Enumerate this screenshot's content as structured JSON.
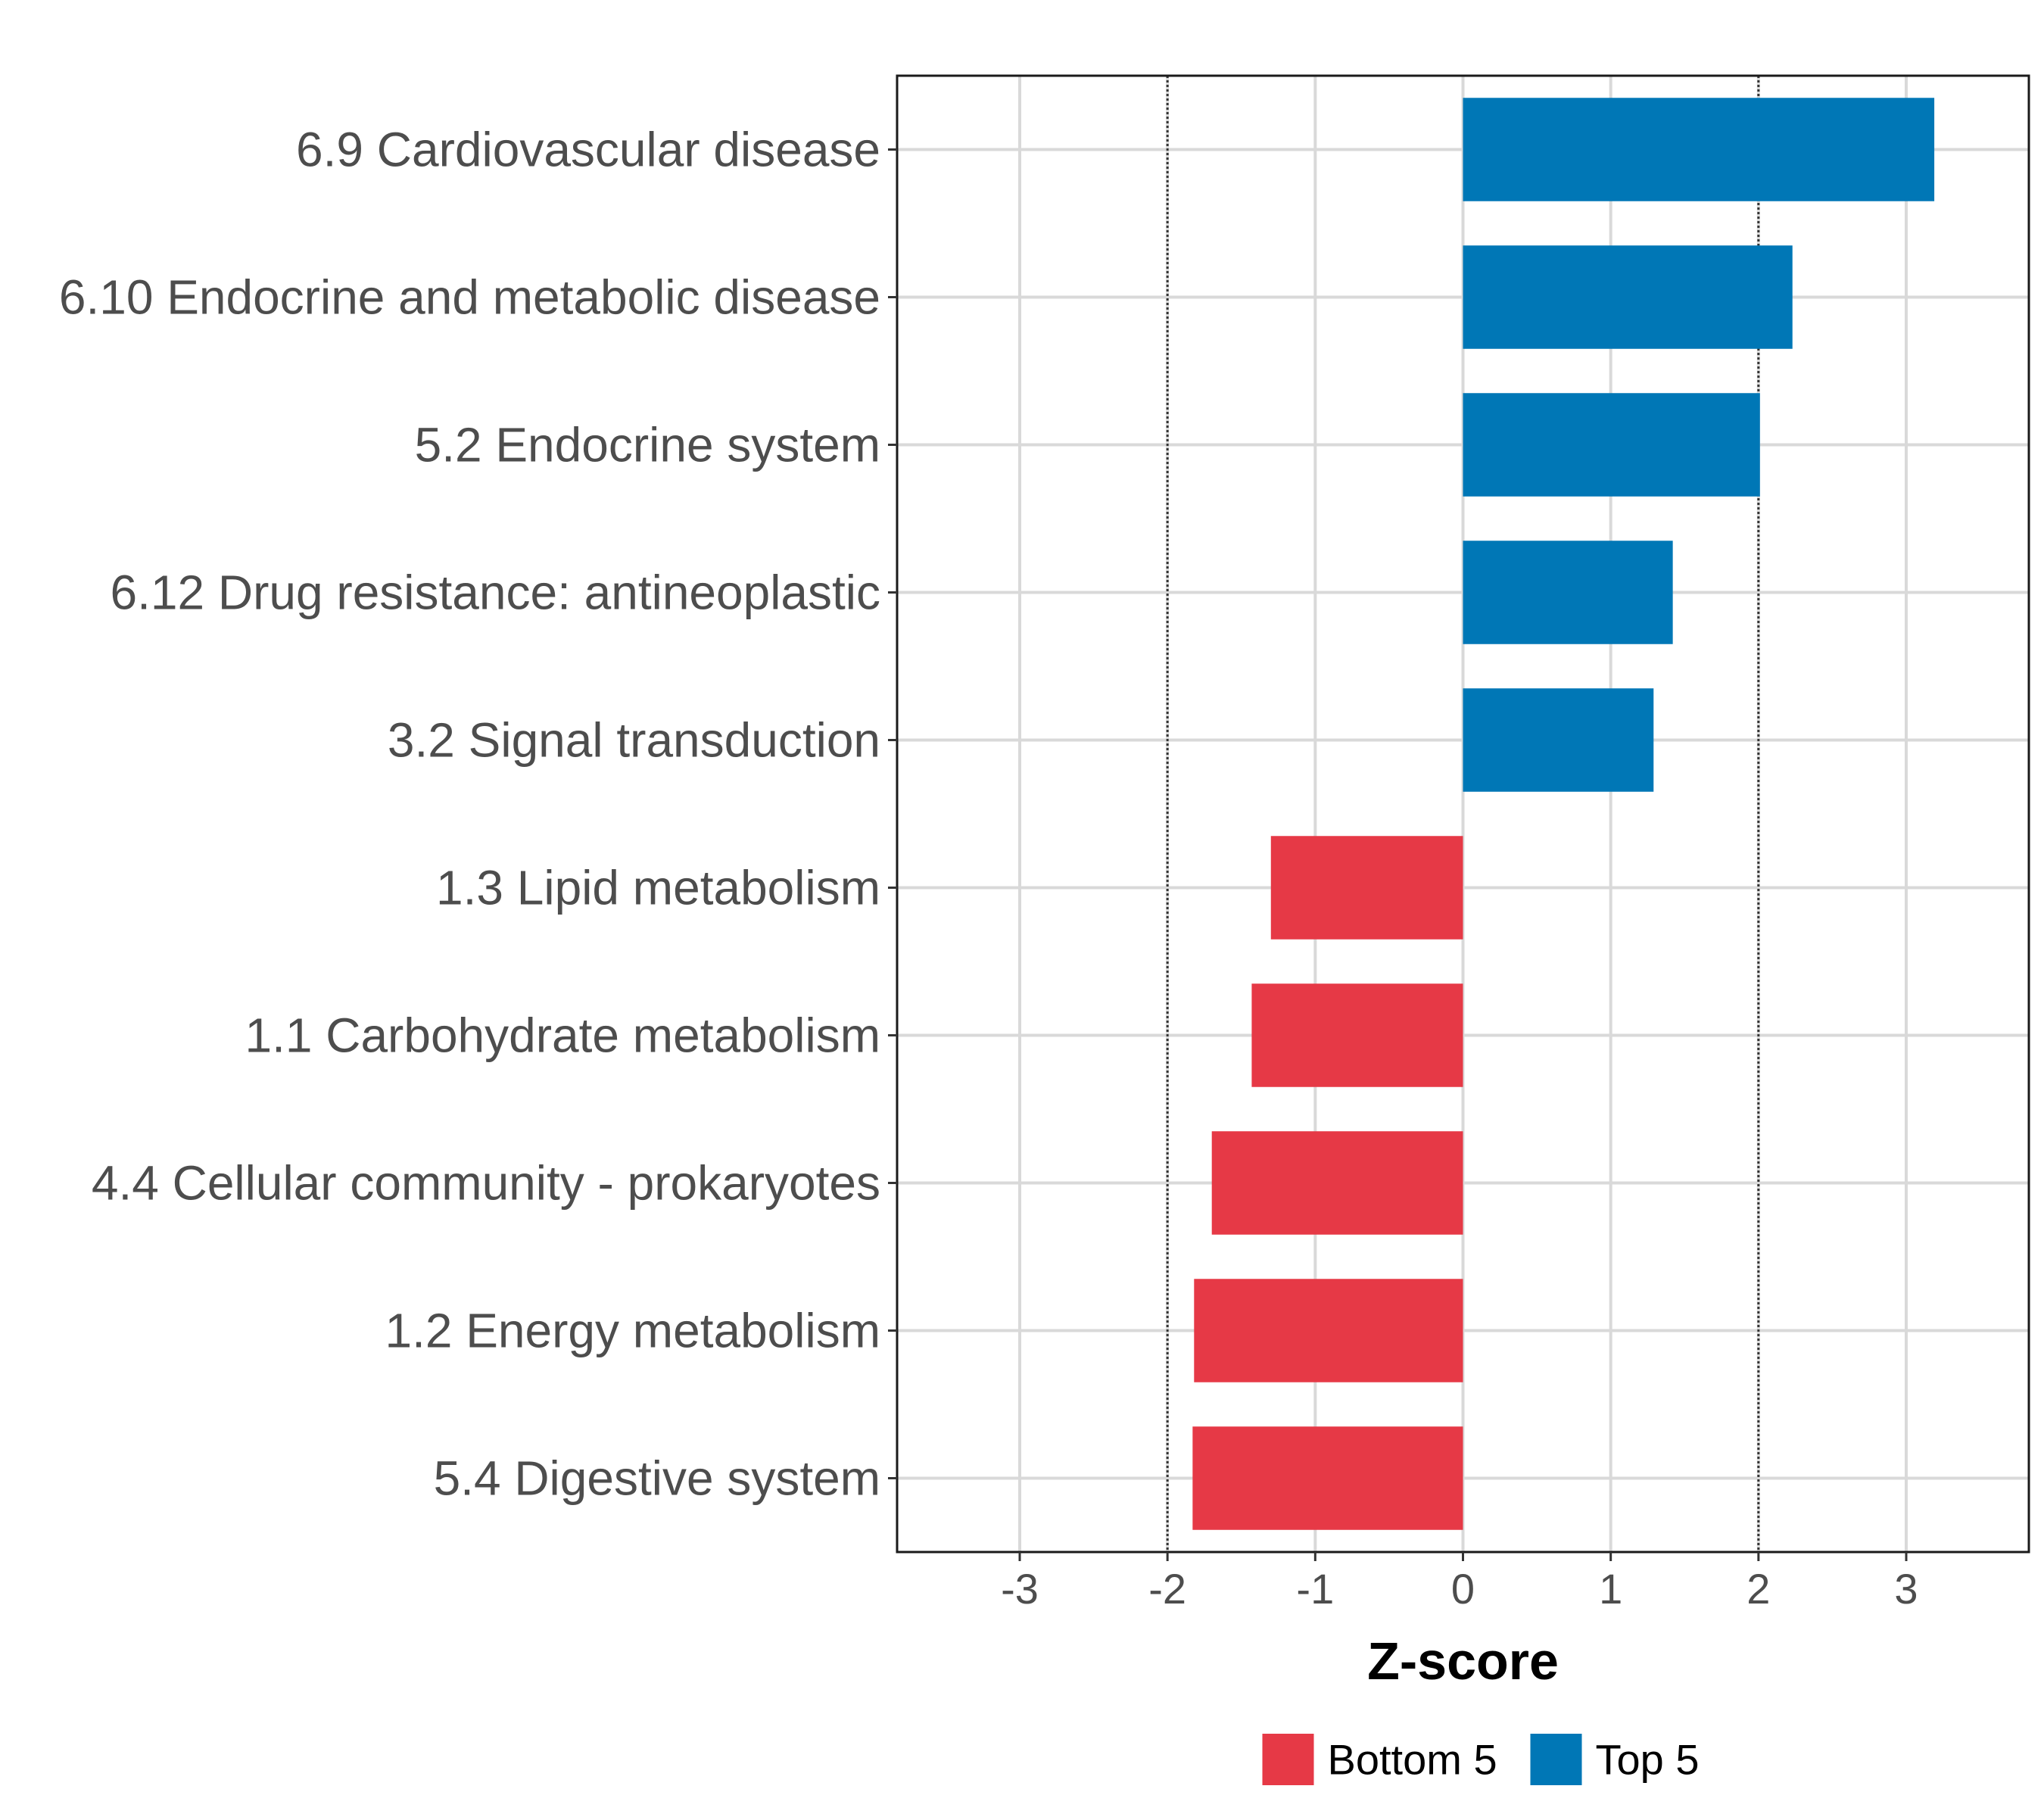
{
  "chart_data": {
    "type": "bar",
    "orientation": "horizontal",
    "categories": [
      "6.9 Cardiovascular disease",
      "6.10 Endocrine and metabolic disease",
      "5.2 Endocrine system",
      "6.12 Drug resistance: antineoplastic",
      "3.2 Signal transduction",
      "1.3 Lipid metabolism",
      "1.1 Carbohydrate metabolism",
      "4.4 Cellular community - prokaryotes",
      "1.2 Energy metabolism",
      "5.4 Digestive system"
    ],
    "values": [
      3.19,
      2.23,
      2.01,
      1.42,
      1.29,
      -1.3,
      -1.43,
      -1.7,
      -1.82,
      -1.83
    ],
    "groups": [
      "Top 5",
      "Top 5",
      "Top 5",
      "Top 5",
      "Top 5",
      "Bottom 5",
      "Bottom 5",
      "Bottom 5",
      "Bottom 5",
      "Bottom 5"
    ],
    "xlabel": "Z-score",
    "ylabel": "",
    "xlim": [
      -3.83,
      3.83
    ],
    "xticks": [
      -3,
      -2,
      -1,
      0,
      1,
      2,
      3
    ],
    "xtick_labels": [
      "-3",
      "-2",
      "-1",
      "0",
      "1",
      "2",
      "3"
    ],
    "reference_lines": [
      -2,
      2
    ],
    "grid": true,
    "legend": {
      "position": "bottom",
      "entries": [
        {
          "label": "Bottom 5",
          "color": "#e63946"
        },
        {
          "label": "Top 5",
          "color": "#0077b6"
        }
      ]
    },
    "colors": {
      "Top 5": "#0077b6",
      "Bottom 5": "#e63946"
    }
  }
}
